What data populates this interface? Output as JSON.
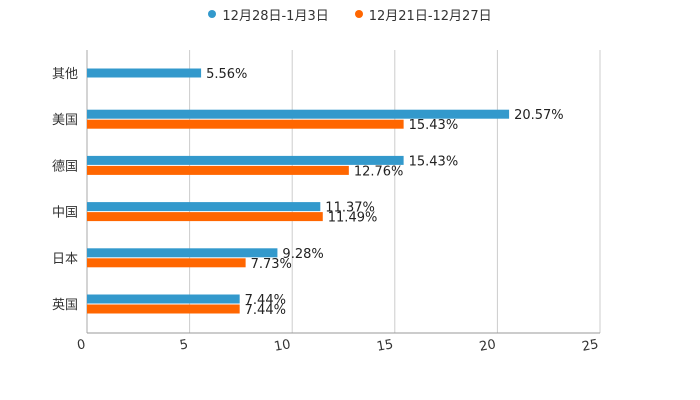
{
  "chart_data": {
    "type": "bar",
    "orientation": "horizontal",
    "categories": [
      "其他",
      "美国",
      "德国",
      "中国",
      "日本",
      "英国"
    ],
    "series": [
      {
        "name": "12月28日-1月3日",
        "color": "#3399cc",
        "values": [
          5.56,
          20.57,
          15.43,
          11.37,
          9.28,
          7.44
        ],
        "labels": [
          "5.56%",
          "20.57%",
          "15.43%",
          "11.37%",
          "9.28%",
          "7.44%"
        ]
      },
      {
        "name": "12月21日-12月27日",
        "color": "#ff6600",
        "values": [
          null,
          15.43,
          12.76,
          11.49,
          7.73,
          7.44
        ],
        "labels": [
          null,
          "15.43%",
          "12.76%",
          "11.49%",
          "7.73%",
          "7.44%"
        ]
      }
    ],
    "x_ticks": [
      0,
      5,
      10,
      15,
      20,
      25
    ],
    "x_tick_labels": [
      "0",
      "5",
      "10",
      "15",
      "20",
      "25"
    ],
    "xlim": [
      0,
      25
    ],
    "grid": true,
    "legend_position": "top-center"
  }
}
